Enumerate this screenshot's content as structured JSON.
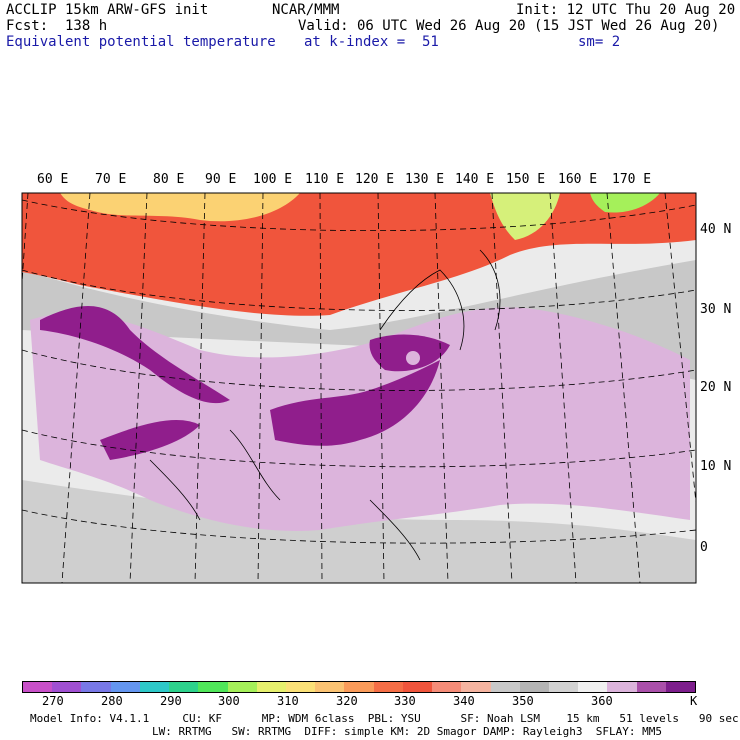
{
  "header": {
    "model": "ACCLIP 15km ARW-GFS init",
    "org": "NCAR/MMM",
    "init": "Init: 12 UTC Thu 20 Aug 20",
    "fcst": "Fcst:  138 h",
    "valid": "Valid: 06 UTC Wed 26 Aug 20 (15 JST Wed 26 Aug 20)",
    "field": "Equivalent potential temperature",
    "level": "at k-index =  51",
    "smooth": "sm= 2"
  },
  "map": {
    "lon_labels": [
      "60 E",
      "70 E",
      "80 E",
      "90 E",
      "100 E",
      "110 E",
      "120 E",
      "130 E",
      "140 E",
      "150 E",
      "160 E",
      "170 E"
    ],
    "lat_labels": [
      "40 N",
      "30 N",
      "20 N",
      "10 N",
      "0"
    ],
    "colors": {
      "land_bg": "#ebebeb",
      "warm_band": "#f0553c",
      "hot_band": "#fbd273",
      "purple_dark": "#901e8c",
      "purple_light": "#dcb4dc",
      "gray": "#c8c8c8"
    }
  },
  "colorbar": {
    "colors": [
      "#c850c8",
      "#a050d2",
      "#7878e6",
      "#6496f0",
      "#2dc8c8",
      "#2dd28c",
      "#50e65a",
      "#a5f05a",
      "#e6f06e",
      "#fbe178",
      "#fbc373",
      "#fa9b5a",
      "#f56e46",
      "#f0553c",
      "#f58c78",
      "#f5b4a0",
      "#c8c8c8",
      "#b4b4b4",
      "#d2d2d2",
      "#f0f0f0",
      "#dcb4dc",
      "#aa50aa",
      "#7d1e8c"
    ],
    "labels": [
      "270",
      "280",
      "290",
      "300",
      "310",
      "320",
      "330",
      "340",
      "350",
      "360"
    ],
    "unit": "K"
  },
  "footer": {
    "line1": "Model Info: V4.1.1     CU: KF      MP: WDM 6class  PBL: YSU      SF: Noah LSM    15 km   51 levels   90 sec",
    "line2": "LW: RRTMG   SW: RRTMG  DIFF: simple KM: 2D Smagor DAMP: Rayleigh3  SFLAY: MM5"
  }
}
